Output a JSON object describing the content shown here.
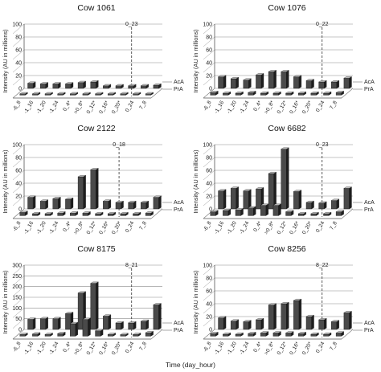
{
  "figure": {
    "x_title": "Time (day_hour)",
    "y_label": "Intensity (AU in millions)",
    "row_labels": [
      "AcA",
      "PrA"
    ]
  },
  "chart_data": [
    {
      "type": "bar",
      "title": "Cow 1061",
      "categories": [
        "-6_8",
        "-1_16",
        "-1_20",
        "-1_24",
        "0_4*",
        ">0_8*",
        "0_12*",
        "0_16*",
        "0_20*",
        "0_24",
        "7_8"
      ],
      "series": [
        {
          "name": "AcA",
          "values": [
            8,
            7,
            7,
            7,
            9,
            10,
            4,
            4,
            4,
            4,
            5
          ]
        },
        {
          "name": "PrA",
          "values": [
            2,
            2,
            2,
            2,
            2,
            2,
            2,
            2,
            2,
            2,
            2
          ]
        }
      ],
      "ylim": [
        0,
        100
      ],
      "yticks": [
        0,
        20,
        40,
        60,
        80,
        100
      ],
      "marker": {
        "label": "0_23",
        "position": "between 0_20* and 0_24"
      },
      "ylabel": "Intensity (AU in millions)"
    },
    {
      "type": "bar",
      "title": "Cow 1076",
      "categories": [
        "-6_8",
        "-1_16",
        "-1_20",
        "-1_24",
        "0_4*",
        ">0_8*",
        "0_12*",
        "0_16*",
        "0_20*",
        "0_24",
        "7_8"
      ],
      "series": [
        {
          "name": "AcA",
          "values": [
            18,
            15,
            13,
            21,
            26,
            26,
            18,
            12,
            10,
            10,
            16
          ]
        },
        {
          "name": "PrA",
          "values": [
            4,
            3,
            3,
            4,
            3,
            3,
            3,
            3,
            3,
            3,
            4
          ]
        }
      ],
      "ylim": [
        0,
        100
      ],
      "yticks": [
        0,
        20,
        40,
        60,
        80,
        100
      ],
      "marker": {
        "label": "0_22",
        "position": "between 0_20* and 0_24"
      },
      "ylabel": "Intensity (AU in millions)"
    },
    {
      "type": "bar",
      "title": "Cow 2122",
      "categories": [
        "-6_8",
        "-1_16",
        "-1_20",
        "-1_24",
        "0_4*",
        ">0_8*",
        "0_12*",
        "0_16*",
        "0_20*",
        "0_24",
        "7_8"
      ],
      "series": [
        {
          "name": "AcA",
          "values": [
            18,
            12,
            16,
            15,
            50,
            61,
            12,
            10,
            10,
            10,
            18
          ]
        },
        {
          "name": "PrA",
          "values": [
            5,
            3,
            3,
            4,
            4,
            4,
            3,
            3,
            3,
            3,
            4
          ]
        }
      ],
      "ylim": [
        0,
        100
      ],
      "yticks": [
        0,
        20,
        40,
        60,
        80,
        100
      ],
      "marker": {
        "label": "0_18",
        "position": "between 0_16* and 0_20*"
      },
      "ylabel": "Intensity (AU in millions)"
    },
    {
      "type": "bar",
      "title": "Cow 6682",
      "categories": [
        "-6_8",
        "-1_16",
        "-1_20",
        "-1_24",
        "0_4*",
        ">0_8*",
        "0_12*",
        "0_16*",
        "0_20*",
        "0_24",
        "7_8"
      ],
      "series": [
        {
          "name": "AcA",
          "values": [
            28,
            32,
            28,
            31,
            55,
            93,
            27,
            10,
            9,
            13,
            32
          ]
        },
        {
          "name": "PrA",
          "values": [
            6,
            8,
            9,
            12,
            16,
            16,
            6,
            3,
            3,
            3,
            6
          ]
        }
      ],
      "ylim": [
        0,
        100
      ],
      "yticks": [
        0,
        20,
        40,
        60,
        80,
        100
      ],
      "marker": {
        "label": "0_23",
        "position": "between 0_20* and 0_24"
      },
      "ylabel": "Intensity (AU in millions)"
    },
    {
      "type": "bar",
      "title": "Cow 8175",
      "categories": [
        "-6_8",
        "-1_16",
        "-1_20",
        "-1_24",
        "0_4*",
        ">0_8*",
        "0_12*",
        "0_16*",
        "0_20*",
        "0_24",
        "7_8"
      ],
      "series": [
        {
          "name": "AcA",
          "values": [
            47,
            50,
            50,
            74,
            170,
            215,
            62,
            30,
            30,
            38,
            115
          ]
        },
        {
          "name": "PrA",
          "values": [
            8,
            10,
            8,
            12,
            58,
            78,
            25,
            8,
            7,
            8,
            16
          ]
        }
      ],
      "ylim": [
        0,
        300
      ],
      "yticks": [
        0,
        50,
        100,
        150,
        200,
        250,
        300
      ],
      "marker": {
        "label": "8_21",
        "position": "between 0_20* and 0_24"
      },
      "ylabel": "Intensity (AU in millions)"
    },
    {
      "type": "bar",
      "title": "Cow 8256",
      "categories": [
        "-6_8",
        "-1_16",
        "-1_20",
        "-1_24",
        "0_4*",
        ">0_8*",
        "0_12*",
        "0_16*",
        "0_20*",
        "0_24",
        "7_8"
      ],
      "series": [
        {
          "name": "AcA",
          "values": [
            18,
            13,
            12,
            15,
            38,
            40,
            45,
            20,
            15,
            12,
            26
          ]
        },
        {
          "name": "PrA",
          "values": [
            4,
            3,
            3,
            4,
            5,
            5,
            5,
            4,
            3,
            3,
            5
          ]
        }
      ],
      "ylim": [
        0,
        100
      ],
      "yticks": [
        0,
        20,
        40,
        60,
        80,
        100
      ],
      "marker": {
        "label": "8_22",
        "position": "between 0_20* and 0_24"
      },
      "ylabel": "Intensity (AU in millions)"
    }
  ]
}
